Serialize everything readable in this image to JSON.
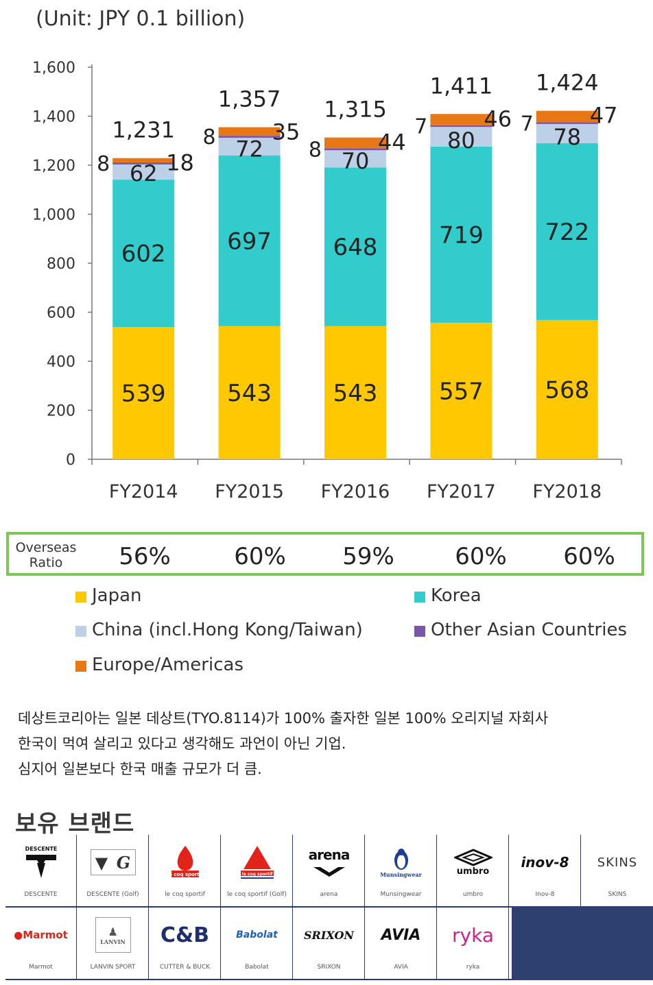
{
  "unit_label": "(Unit: JPY 0.1  billion)",
  "chart_data": {
    "type": "bar",
    "stacked": true,
    "categories": [
      "FY2014",
      "FY2015",
      "FY2016",
      "FY2017",
      "FY2018"
    ],
    "series": [
      {
        "name": "Japan",
        "color": "#ffc800",
        "values": [
          539,
          543,
          543,
          557,
          568
        ]
      },
      {
        "name": "Korea",
        "color": "#33cccc",
        "values": [
          602,
          697,
          648,
          719,
          722
        ]
      },
      {
        "name": "China (incl.Hong Kong/Taiwan)",
        "color": "#bcd0e8",
        "values": [
          62,
          72,
          70,
          80,
          78
        ]
      },
      {
        "name": "Other Asian Countries",
        "color": "#7b56a8",
        "values": [
          8,
          8,
          8,
          7,
          7
        ]
      },
      {
        "name": "Europe/Americas",
        "color": "#e87816",
        "values": [
          18,
          35,
          44,
          46,
          47
        ]
      }
    ],
    "totals": [
      "1,231",
      "1,357",
      "1,315",
      "1,411",
      "1,424"
    ],
    "ylim": [
      0,
      1600
    ],
    "yticks": [
      "0",
      "200",
      "400",
      "600",
      "800",
      "1,000",
      "1,200",
      "1,400",
      "1,600"
    ],
    "xlabel": "",
    "ylabel": ""
  },
  "overseas": {
    "label_line1": "Overseas",
    "label_line2": "Ratio",
    "values": [
      "56%",
      "60%",
      "59%",
      "60%",
      "60%"
    ]
  },
  "legend": {
    "japan": "Japan",
    "korea": "Korea",
    "china": "China (incl.Hong Kong/Taiwan)",
    "other_asia": "Other Asian Countries",
    "europe": "Europe/Americas"
  },
  "description": {
    "line1": "데상트코리아는 일본 데상트(TYO.8114)가 100% 출자한 일본 100% 오리지널 자회사",
    "line2": "한국이 먹여 살리고 있다고 생각해도 과언이 아닌 기업.",
    "line3": "심지어 일본보다 한국 매출 규모가 더 큼."
  },
  "brands_title": "보유 브랜드",
  "brands": [
    {
      "logo": "DESCENTE",
      "caption": "DESCENTE"
    },
    {
      "logo": "DESCENTE G",
      "caption": "DESCENTE (Golf)"
    },
    {
      "logo": "le coq sportif",
      "caption": "le coq sportif"
    },
    {
      "logo": "le coq sportif",
      "caption": "le coq sportif (Golf)"
    },
    {
      "logo": "arena",
      "caption": "arena"
    },
    {
      "logo": "Munsingwear",
      "caption": "Munsingwear"
    },
    {
      "logo": "umbro",
      "caption": "umbro"
    },
    {
      "logo": "inov-8",
      "caption": "Inov-8"
    },
    {
      "logo": "SKINS",
      "caption": "SKINS"
    },
    {
      "logo": "Marmot",
      "caption": "Marmot"
    },
    {
      "logo": "LANVIN",
      "caption": "LANVIN SPORT"
    },
    {
      "logo": "C&B",
      "caption": "CUTTER & BUCK"
    },
    {
      "logo": "Babolat",
      "caption": "Babolat"
    },
    {
      "logo": "SRIXON",
      "caption": "SRIXON"
    },
    {
      "logo": "AVIA",
      "caption": "AVIA"
    },
    {
      "logo": "ryka",
      "caption": "ryka"
    }
  ]
}
